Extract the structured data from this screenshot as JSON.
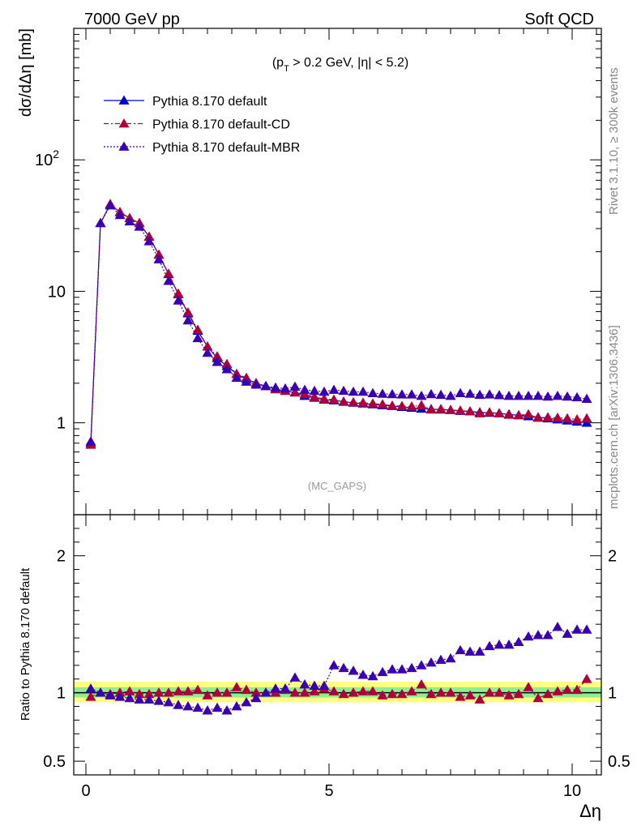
{
  "header": {
    "left": "7000 GeV pp",
    "right": "Soft QCD"
  },
  "side_labels": {
    "top": "Rivet 3.1.10, ≥ 300k events",
    "bottom": "mcplots.cern.ch [arXiv:1306.3436]"
  },
  "watermark": "(MC_GAPS)",
  "cut_label": "(p_T > 0.2 GeV, |η| < 5.2)",
  "colors": {
    "default": "#0000cc",
    "cd": "#b0003a",
    "mbr": "#3a00b0",
    "band_green": "#90ee90",
    "band_yellow": "#ffff80"
  },
  "chart_data": [
    {
      "type": "line",
      "ylabel": "dσ/dΔη [mb]",
      "yscale": "log",
      "xlim": [
        -0.25,
        10.6
      ],
      "ylim": [
        0.2,
        1000
      ],
      "y_ticks": [
        "1",
        "10",
        "10^2"
      ],
      "x": [
        0.1,
        0.3,
        0.5,
        0.7,
        0.9,
        1.1,
        1.3,
        1.5,
        1.7,
        1.9,
        2.1,
        2.3,
        2.5,
        2.7,
        2.9,
        3.1,
        3.3,
        3.5,
        3.7,
        3.9,
        4.1,
        4.3,
        4.5,
        4.7,
        4.9,
        5.1,
        5.3,
        5.5,
        5.7,
        5.9,
        6.1,
        6.3,
        6.5,
        6.7,
        6.9,
        7.1,
        7.3,
        7.5,
        7.7,
        7.9,
        8.1,
        8.3,
        8.5,
        8.7,
        8.9,
        9.1,
        9.3,
        9.5,
        9.7,
        9.9,
        10.1,
        10.3
      ],
      "series": [
        {
          "name": "Pythia 8.170 default",
          "values": [
            0.7,
            33,
            46,
            40,
            36,
            33,
            26,
            19,
            13.5,
            9.5,
            6.8,
            5.0,
            3.8,
            3.1,
            2.7,
            2.35,
            2.15,
            2.0,
            1.9,
            1.8,
            1.75,
            1.7,
            1.6,
            1.55,
            1.5,
            1.48,
            1.45,
            1.42,
            1.4,
            1.38,
            1.36,
            1.34,
            1.32,
            1.3,
            1.28,
            1.27,
            1.26,
            1.25,
            1.23,
            1.22,
            1.2,
            1.19,
            1.18,
            1.16,
            1.14,
            1.12,
            1.1,
            1.08,
            1.06,
            1.04,
            1.02,
            1.0
          ]
        },
        {
          "name": "Pythia 8.170 default-CD",
          "values": [
            0.68,
            33,
            46,
            40,
            36,
            33,
            26,
            19,
            13.6,
            9.6,
            6.9,
            5.1,
            3.8,
            3.2,
            2.8,
            2.35,
            2.2,
            2.0,
            1.9,
            1.8,
            1.75,
            1.7,
            1.65,
            1.57,
            1.52,
            1.5,
            1.44,
            1.43,
            1.42,
            1.4,
            1.38,
            1.35,
            1.34,
            1.33,
            1.36,
            1.26,
            1.27,
            1.25,
            1.24,
            1.22,
            1.18,
            1.2,
            1.18,
            1.15,
            1.14,
            1.16,
            1.09,
            1.1,
            1.09,
            1.08,
            1.06,
            1.08
          ]
        },
        {
          "name": "Pythia 8.170 default-MBR",
          "values": [
            0.72,
            33,
            45,
            38,
            34,
            31,
            24,
            17.5,
            12,
            8.5,
            6.0,
            4.4,
            3.4,
            2.9,
            2.55,
            2.2,
            2.05,
            1.95,
            1.9,
            1.85,
            1.82,
            1.88,
            1.78,
            1.75,
            1.72,
            1.78,
            1.75,
            1.72,
            1.72,
            1.68,
            1.66,
            1.65,
            1.64,
            1.64,
            1.6,
            1.65,
            1.63,
            1.6,
            1.68,
            1.66,
            1.63,
            1.64,
            1.62,
            1.6,
            1.6,
            1.6,
            1.6,
            1.58,
            1.6,
            1.58,
            1.56,
            1.52
          ]
        }
      ]
    },
    {
      "type": "line",
      "xlabel": "Δη",
      "ylabel": "Ratio to Pythia 8.170 default",
      "xlim": [
        -0.25,
        10.6
      ],
      "ylim": [
        0.4,
        2.3
      ],
      "x_ticks": [
        "0",
        "5",
        "10"
      ],
      "y_ticks": [
        "0.5",
        "1",
        "2"
      ],
      "x": [
        0.1,
        0.3,
        0.5,
        0.7,
        0.9,
        1.1,
        1.3,
        1.5,
        1.7,
        1.9,
        2.1,
        2.3,
        2.5,
        2.7,
        2.9,
        3.1,
        3.3,
        3.5,
        3.7,
        3.9,
        4.1,
        4.3,
        4.5,
        4.7,
        4.9,
        5.1,
        5.3,
        5.5,
        5.7,
        5.9,
        6.1,
        6.3,
        6.5,
        6.7,
        6.9,
        7.1,
        7.3,
        7.5,
        7.7,
        7.9,
        8.1,
        8.3,
        8.5,
        8.7,
        8.9,
        9.1,
        9.3,
        9.5,
        9.7,
        9.9,
        10.1,
        10.3
      ],
      "band": {
        "yellow": [
          0.93,
          1.08
        ],
        "green": [
          0.965,
          1.04
        ]
      },
      "series": [
        {
          "name": "Pythia 8.170 default-CD",
          "values": [
            0.97,
            1.0,
            0.99,
            1.0,
            1.01,
            0.99,
            0.99,
            1.0,
            1.0,
            1.01,
            1.01,
            1.02,
            0.98,
            1.0,
            1.0,
            1.04,
            1.02,
            1.0,
            1.0,
            1.0,
            1.02,
            1.0,
            1.0,
            1.01,
            1.03,
            1.01,
            0.99,
            1.0,
            1.01,
            1.01,
            0.98,
            0.99,
            0.99,
            1.01,
            1.06,
            0.99,
            1.0,
            1.0,
            0.97,
            0.98,
            0.95,
            1.0,
            1.0,
            0.98,
            0.99,
            1.04,
            0.96,
            0.99,
            1.01,
            1.02,
            1.02,
            1.1
          ]
        },
        {
          "name": "Pythia 8.170 default-MBR",
          "values": [
            1.03,
            1.0,
            0.98,
            0.97,
            0.96,
            0.95,
            0.95,
            0.94,
            0.93,
            0.91,
            0.9,
            0.89,
            0.87,
            0.89,
            0.87,
            0.9,
            0.93,
            0.96,
            1.0,
            1.03,
            1.03,
            1.11,
            1.06,
            1.05,
            1.05,
            1.2,
            1.18,
            1.16,
            1.13,
            1.12,
            1.15,
            1.17,
            1.17,
            1.18,
            1.2,
            1.22,
            1.24,
            1.25,
            1.31,
            1.3,
            1.3,
            1.34,
            1.35,
            1.35,
            1.37,
            1.41,
            1.42,
            1.42,
            1.48,
            1.43,
            1.46,
            1.46
          ]
        }
      ]
    }
  ]
}
